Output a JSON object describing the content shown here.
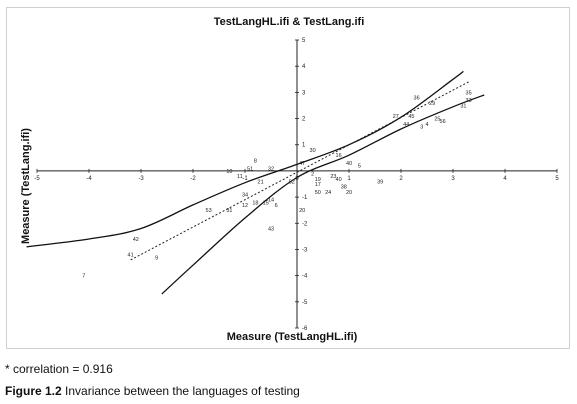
{
  "note": "* correlation = 0.916",
  "caption": {
    "label": "Figure 1.2",
    "text": " Invariance between the languages of testing"
  },
  "chart_data": {
    "type": "scatter",
    "title": "TestLangHL.ifi & TestLang.ifi",
    "xlabel": "Measure (TestLangHL.ifi)",
    "ylabel": "Measure (TestLang.ifi)",
    "xlim": [
      -5,
      5
    ],
    "ylim": [
      -6,
      5
    ],
    "xticks": [
      -5,
      -4,
      -3,
      -2,
      -1,
      0,
      1,
      2,
      3,
      4,
      5
    ],
    "yticks": [
      5,
      4,
      3,
      2,
      1,
      -1,
      -2,
      -3,
      -4,
      -5,
      -6
    ],
    "grid": false,
    "identity_line": {
      "style": "dotted",
      "from": [
        -3.2,
        -3.4
      ],
      "to": [
        3.3,
        3.4
      ]
    },
    "confidence_upper": [
      [
        -5.2,
        -2.9
      ],
      [
        -4.0,
        -2.6
      ],
      [
        -3.0,
        -2.2
      ],
      [
        -2.0,
        -1.3
      ],
      [
        -1.0,
        -0.45
      ],
      [
        0.0,
        0.25
      ],
      [
        1.0,
        1.0
      ],
      [
        2.0,
        2.05
      ],
      [
        3.0,
        3.5
      ],
      [
        3.2,
        3.8
      ]
    ],
    "confidence_lower": [
      [
        -2.6,
        -4.7
      ],
      [
        -2.0,
        -3.6
      ],
      [
        -1.0,
        -1.8
      ],
      [
        0.0,
        -0.25
      ],
      [
        1.0,
        0.6
      ],
      [
        2.0,
        1.6
      ],
      [
        3.0,
        2.45
      ],
      [
        3.6,
        2.9
      ]
    ],
    "points": [
      {
        "label": "7",
        "x": -4.1,
        "y": -4.0
      },
      {
        "label": "9",
        "x": -2.7,
        "y": -3.3
      },
      {
        "label": "42",
        "x": -3.1,
        "y": -2.6
      },
      {
        "label": "41",
        "x": -3.2,
        "y": -3.2
      },
      {
        "label": "43",
        "x": -0.5,
        "y": -2.2
      },
      {
        "label": "53",
        "x": -1.7,
        "y": -1.5
      },
      {
        "label": "31",
        "x": -1.3,
        "y": -1.5
      },
      {
        "label": "12",
        "x": -1.0,
        "y": -1.3
      },
      {
        "label": "18",
        "x": -0.8,
        "y": -1.2
      },
      {
        "label": "15",
        "x": -0.6,
        "y": -1.2
      },
      {
        "label": "14",
        "x": -0.5,
        "y": -1.1
      },
      {
        "label": "6",
        "x": -0.4,
        "y": -1.3
      },
      {
        "label": "20",
        "x": 0.1,
        "y": -1.5
      },
      {
        "label": "11",
        "x": -1.1,
        "y": -0.2
      },
      {
        "label": "21",
        "x": -0.7,
        "y": -0.4
      },
      {
        "label": "34",
        "x": -1.0,
        "y": -0.9
      },
      {
        "label": "52",
        "x": -0.1,
        "y": -0.4
      },
      {
        "label": "10",
        "x": -1.3,
        "y": 0.0
      },
      {
        "label": "8",
        "x": -0.8,
        "y": 0.4
      },
      {
        "label": "51",
        "x": -0.9,
        "y": 0.1
      },
      {
        "label": "32",
        "x": -0.5,
        "y": 0.1
      },
      {
        "label": "47",
        "x": 0.1,
        "y": 0.3
      },
      {
        "label": "2",
        "x": 0.3,
        "y": -0.1
      },
      {
        "label": "19",
        "x": 0.4,
        "y": -0.3
      },
      {
        "label": "23",
        "x": 0.7,
        "y": -0.2
      },
      {
        "label": "40",
        "x": 0.8,
        "y": -0.3
      },
      {
        "label": "38",
        "x": 0.9,
        "y": -0.6
      },
      {
        "label": "20",
        "x": 1.0,
        "y": -0.8
      },
      {
        "label": "24",
        "x": 0.6,
        "y": -0.8
      },
      {
        "label": "50",
        "x": 0.4,
        "y": -0.8
      },
      {
        "label": "17",
        "x": 0.4,
        "y": -0.5
      },
      {
        "label": "39",
        "x": 1.6,
        "y": -0.4
      },
      {
        "label": "30",
        "x": 0.3,
        "y": 0.8
      },
      {
        "label": "16",
        "x": 0.8,
        "y": 0.6
      },
      {
        "label": "40",
        "x": 1.0,
        "y": 0.3
      },
      {
        "label": "5",
        "x": 1.2,
        "y": 0.2
      },
      {
        "label": "27",
        "x": 1.9,
        "y": 2.1
      },
      {
        "label": "44",
        "x": 2.1,
        "y": 1.8
      },
      {
        "label": "45",
        "x": 2.2,
        "y": 2.1
      },
      {
        "label": "3",
        "x": 2.4,
        "y": 1.7
      },
      {
        "label": "4",
        "x": 2.5,
        "y": 1.8
      },
      {
        "label": "36",
        "x": 2.3,
        "y": 2.8
      },
      {
        "label": "29",
        "x": 2.6,
        "y": 2.6
      },
      {
        "label": "25",
        "x": 2.7,
        "y": 2.0
      },
      {
        "label": "35",
        "x": 3.3,
        "y": 3.0
      },
      {
        "label": "33",
        "x": 3.3,
        "y": 2.7
      },
      {
        "label": "31",
        "x": 3.2,
        "y": 2.5
      },
      {
        "label": "56",
        "x": 2.8,
        "y": 1.9
      }
    ]
  }
}
